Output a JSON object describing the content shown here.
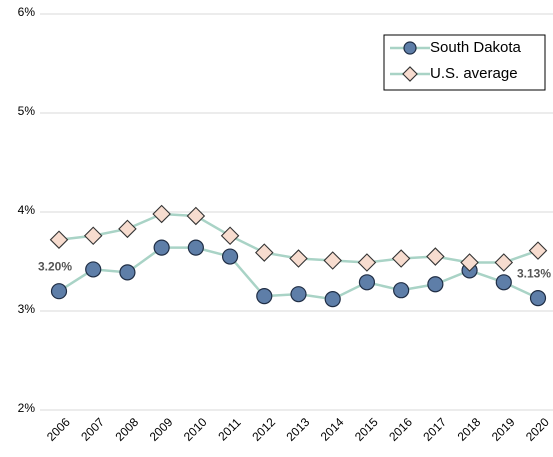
{
  "chart_data": {
    "type": "line",
    "categories": [
      "2006",
      "2007",
      "2008",
      "2009",
      "2010",
      "2011",
      "2012",
      "2013",
      "2014",
      "2015",
      "2016",
      "2017",
      "2018",
      "2019",
      "2020"
    ],
    "series": [
      {
        "name": "South Dakota",
        "color": "#5e7ea8",
        "line_color": "#a9d3c6",
        "values": [
          3.2,
          3.42,
          3.39,
          3.64,
          3.64,
          3.55,
          3.15,
          3.17,
          3.12,
          3.29,
          3.21,
          3.27,
          3.41,
          3.29,
          3.13
        ],
        "value_labels": [
          "3.20%",
          null,
          null,
          null,
          null,
          null,
          null,
          null,
          null,
          null,
          null,
          null,
          null,
          null,
          "3.13%"
        ]
      },
      {
        "name": "U.S. average",
        "color": "#f7dccf",
        "line_color": "#a9d3c6",
        "values": [
          3.72,
          3.76,
          3.83,
          3.98,
          3.96,
          3.76,
          3.59,
          3.53,
          3.51,
          3.49,
          3.53,
          3.55,
          3.49,
          3.49,
          3.61
        ]
      }
    ],
    "ylim": [
      2,
      6
    ],
    "yticks": [
      {
        "value": 2,
        "label": "2%"
      },
      {
        "value": 3,
        "label": "3%"
      },
      {
        "value": 4,
        "label": "4%"
      },
      {
        "value": 5,
        "label": "5%"
      },
      {
        "value": 6,
        "label": "6%"
      }
    ],
    "grid": true,
    "legend": "top-right"
  }
}
